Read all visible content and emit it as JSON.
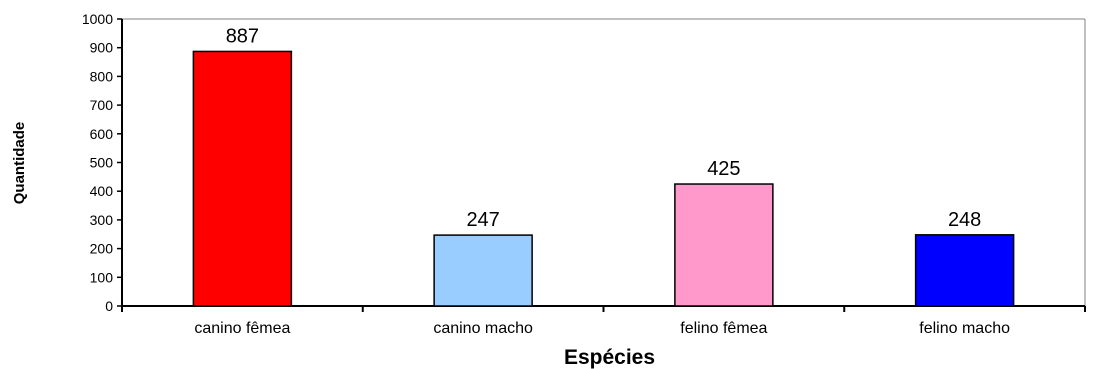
{
  "chart_data": {
    "type": "bar",
    "title": "",
    "xlabel": "Espécies",
    "ylabel": "Quantidade",
    "categories": [
      "canino fêmea",
      "canino macho",
      "felino fêmea",
      "felino macho"
    ],
    "values": [
      887,
      247,
      425,
      248
    ],
    "data_labels": [
      "887",
      "247",
      "425",
      "248"
    ],
    "colors": [
      "#ff0000",
      "#99ccff",
      "#ff99cc",
      "#0000ff"
    ],
    "ylim": [
      0,
      1000
    ],
    "yticks": [
      0,
      100,
      200,
      300,
      400,
      500,
      600,
      700,
      800,
      900,
      1000
    ],
    "grid": false,
    "legend": "none"
  }
}
